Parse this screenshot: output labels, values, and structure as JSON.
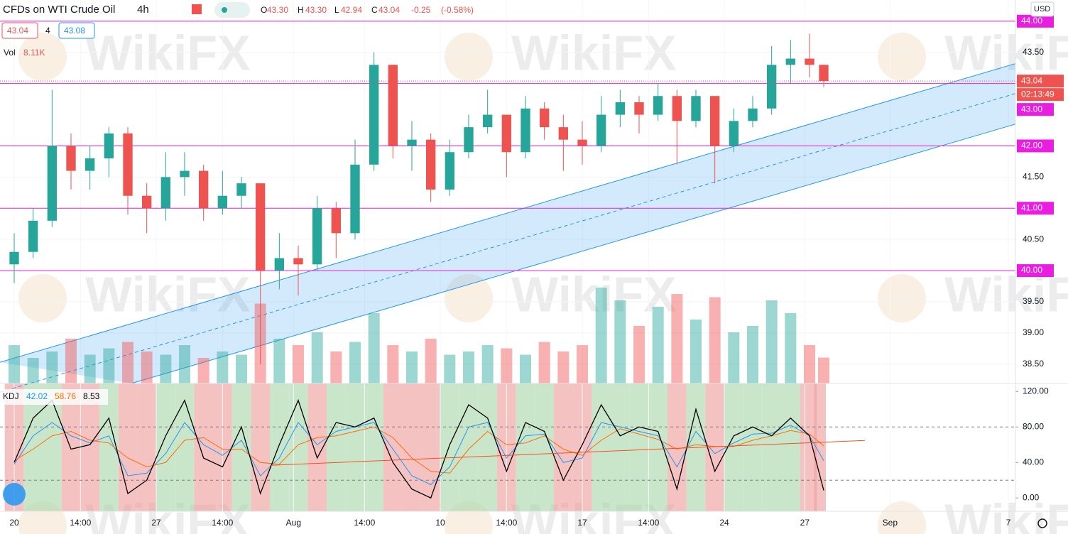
{
  "header": {
    "symbol": "CFDs on WTI Crude Oil",
    "interval": "4h",
    "ohlc": [
      {
        "label": "O",
        "value": "43.30"
      },
      {
        "label": "H",
        "value": "43.30"
      },
      {
        "label": "L",
        "value": "42.94"
      },
      {
        "label": "C",
        "value": "43.04"
      }
    ],
    "change": "-0.25",
    "change_pct": "(-0.58%)",
    "bid": "43.04",
    "spread": "4",
    "ask": "43.08",
    "vol_label": "Vol",
    "vol_value": "8.11K",
    "currency": "USD"
  },
  "watermark": "WikiFX",
  "chart_data": [
    {
      "type": "candlestick",
      "title": "CFDs on WTI Crude Oil",
      "x": [
        0,
        4,
        8,
        12,
        16,
        20,
        24,
        28,
        32,
        36,
        40,
        44,
        48,
        52,
        56,
        60,
        64,
        68,
        72,
        76,
        80,
        84,
        88,
        92,
        96,
        100,
        104,
        108,
        112,
        116,
        120,
        124,
        128,
        132,
        136,
        140,
        144,
        148,
        152,
        156,
        160,
        164,
        168,
        171
      ],
      "open": [
        40.1,
        40.3,
        40.8,
        42.0,
        41.6,
        41.8,
        42.2,
        41.2,
        41.0,
        41.5,
        41.6,
        41.0,
        41.2,
        41.4,
        40.0,
        40.2,
        40.1,
        41.0,
        40.6,
        41.7,
        43.3,
        42.0,
        42.1,
        41.3,
        41.9,
        42.3,
        42.5,
        41.9,
        42.6,
        42.3,
        42.1,
        42.0,
        42.5,
        42.7,
        42.5,
        42.8,
        42.4,
        42.8,
        42.0,
        42.4,
        42.6,
        43.3,
        43.4,
        43.3
      ],
      "high": [
        40.6,
        41.0,
        42.9,
        42.2,
        42.0,
        42.3,
        42.3,
        41.4,
        41.9,
        41.9,
        41.7,
        41.6,
        41.5,
        41.4,
        40.6,
        40.4,
        41.2,
        41.1,
        42.1,
        43.5,
        43.3,
        42.4,
        42.2,
        42.1,
        42.5,
        42.9,
        42.5,
        42.8,
        42.7,
        42.5,
        42.4,
        42.8,
        42.9,
        42.8,
        43.0,
        42.9,
        42.9,
        42.8,
        42.6,
        42.8,
        43.6,
        43.7,
        43.8,
        43.3
      ],
      "low": [
        39.8,
        40.2,
        40.7,
        41.3,
        41.3,
        41.5,
        40.9,
        40.6,
        40.8,
        41.2,
        40.8,
        40.9,
        41.0,
        38.5,
        39.7,
        39.6,
        40.0,
        40.2,
        40.5,
        41.6,
        41.8,
        41.6,
        41.1,
        41.2,
        41.8,
        42.2,
        41.5,
        41.8,
        42.1,
        41.6,
        41.7,
        41.9,
        42.3,
        42.2,
        42.4,
        41.7,
        42.3,
        41.4,
        41.9,
        42.3,
        42.5,
        43.0,
        43.1,
        42.94
      ],
      "close": [
        40.3,
        40.8,
        42.0,
        41.6,
        41.8,
        42.2,
        41.2,
        41.0,
        41.5,
        41.6,
        41.0,
        41.2,
        41.4,
        40.0,
        40.2,
        40.1,
        41.0,
        40.6,
        41.7,
        43.3,
        42.0,
        42.1,
        41.3,
        41.9,
        42.3,
        42.5,
        41.9,
        42.6,
        42.3,
        42.1,
        42.0,
        42.5,
        42.7,
        42.5,
        42.8,
        42.4,
        42.8,
        42.0,
        42.4,
        42.6,
        43.3,
        43.4,
        43.3,
        43.04
      ],
      "volume": [
        12,
        8,
        10,
        14,
        9,
        11,
        13,
        10,
        9,
        12,
        8,
        10,
        9,
        25,
        14,
        12,
        16,
        10,
        13,
        22,
        12,
        10,
        14,
        9,
        10,
        12,
        11,
        9,
        13,
        10,
        12,
        30,
        26,
        18,
        24,
        28,
        20,
        27,
        16,
        18,
        26,
        22,
        12,
        8.11
      ],
      "up_color": "#26a69a",
      "down_color": "#ef5350",
      "xlim": [
        -3,
        211.5
      ],
      "xticks": [
        {
          "value": 0,
          "label": "20"
        },
        {
          "value": 14,
          "label": "14:00"
        },
        {
          "value": 30,
          "label": "27"
        },
        {
          "value": 44,
          "label": "14:00"
        },
        {
          "value": 59,
          "label": "Aug"
        },
        {
          "value": 74,
          "label": "14:00"
        },
        {
          "value": 90,
          "label": "10"
        },
        {
          "value": 104,
          "label": "14:00"
        },
        {
          "value": 120,
          "label": "17"
        },
        {
          "value": 134,
          "label": "14:00"
        },
        {
          "value": 150,
          "label": "24"
        },
        {
          "value": 167,
          "label": "27"
        },
        {
          "value": 185,
          "label": "Sep"
        },
        {
          "value": 210,
          "label": "7"
        }
      ],
      "ylim": [
        38.19,
        44.34
      ],
      "yticks": [
        {
          "value": 43.5,
          "label": "43.50"
        },
        {
          "value": 41.5,
          "label": "41.50"
        },
        {
          "value": 40.5,
          "label": "40.50"
        },
        {
          "value": 39.5,
          "label": "39.50"
        },
        {
          "value": 39,
          "label": "39.00"
        },
        {
          "value": 38.5,
          "label": "38.50"
        }
      ],
      "levels": [
        {
          "value": 44,
          "label": "44.00"
        },
        {
          "value": 43,
          "label": "43.00"
        },
        {
          "value": 42,
          "label": "42.00"
        },
        {
          "value": 41,
          "label": "41.00"
        },
        {
          "value": 40,
          "label": "40.00"
        }
      ],
      "level_color": "#e91ee0",
      "last_price": {
        "value": 43.04,
        "label": "43.04",
        "countdown": "02:13:49"
      },
      "channel": {
        "upper": {
          "x": [
            -3,
            211.5
          ],
          "y": [
            38.53,
            43.32
          ]
        },
        "lower": {
          "x": [
            24.75,
            211.5
          ],
          "y": [
            38.19,
            42.35
          ]
        },
        "color": "#2196f3"
      }
    },
    {
      "type": "line",
      "title": "KDJ",
      "x": [
        0,
        4,
        8,
        12,
        16,
        20,
        24,
        28,
        32,
        36,
        40,
        44,
        48,
        52,
        56,
        60,
        64,
        68,
        72,
        76,
        80,
        84,
        88,
        92,
        96,
        100,
        104,
        108,
        112,
        116,
        120,
        124,
        128,
        132,
        136,
        140,
        144,
        148,
        152,
        156,
        160,
        164,
        168,
        171
      ],
      "series": [
        {
          "name": "K",
          "color": "#2196f3",
          "values": [
            38,
            70,
            85,
            70,
            62,
            70,
            25,
            28,
            50,
            85,
            60,
            48,
            65,
            25,
            45,
            85,
            60,
            75,
            80,
            85,
            55,
            25,
            15,
            35,
            80,
            85,
            45,
            70,
            72,
            40,
            45,
            85,
            80,
            75,
            70,
            35,
            75,
            50,
            62,
            72,
            73,
            82,
            70,
            42.02
          ]
        },
        {
          "name": "D",
          "color": "#ff6d00",
          "values": [
            42,
            55,
            70,
            75,
            65,
            62,
            45,
            35,
            40,
            65,
            68,
            55,
            55,
            40,
            38,
            60,
            68,
            70,
            75,
            80,
            68,
            45,
            30,
            28,
            55,
            75,
            60,
            62,
            70,
            55,
            48,
            65,
            78,
            72,
            66,
            55,
            60,
            58,
            58,
            65,
            70,
            76,
            72,
            58.76
          ]
        },
        {
          "name": "J",
          "color": "#000000",
          "values": [
            40,
            90,
            110,
            55,
            60,
            90,
            5,
            20,
            70,
            110,
            45,
            35,
            80,
            5,
            60,
            110,
            45,
            85,
            80,
            90,
            40,
            10,
            0,
            60,
            105,
            90,
            30,
            85,
            75,
            20,
            60,
            105,
            70,
            80,
            75,
            10,
            100,
            30,
            70,
            80,
            70,
            90,
            70,
            8.53
          ]
        }
      ],
      "ylim": [
        -15,
        129
      ],
      "yticks": [
        {
          "value": 120,
          "label": "120.00"
        },
        {
          "value": 80,
          "label": "80.00"
        },
        {
          "value": 40,
          "label": "40.00"
        },
        {
          "value": 0,
          "label": "0.00"
        }
      ],
      "bands": [
        20,
        80
      ],
      "trendline": {
        "x": [
          54,
          179.7
        ],
        "y": [
          36.8,
          64.8
        ],
        "color": "#f4511e"
      }
    }
  ]
}
